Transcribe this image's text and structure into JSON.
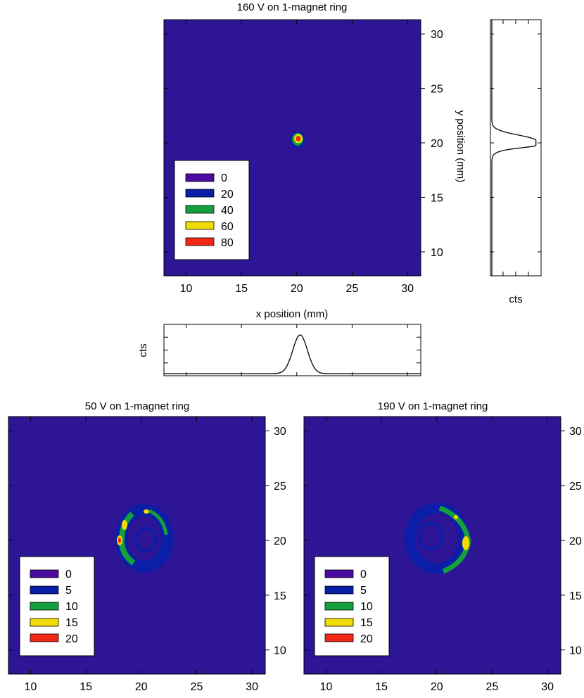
{
  "chart_data": [
    {
      "type": "heatmap",
      "title": "160 V on 1-magnet ring",
      "xlabel": "x position (mm)",
      "ylabel": "y position (mm)",
      "xlim": [
        8,
        31.2
      ],
      "ylim": [
        7.8,
        31.3
      ],
      "xticks": [
        "10",
        "15",
        "20",
        "25",
        "30"
      ],
      "yticks": [
        "10",
        "15",
        "20",
        "25",
        "30"
      ],
      "legend": {
        "position": "bottom-left",
        "levels": [
          "0",
          "20",
          "40",
          "60",
          "80"
        ],
        "colors": [
          "#4b0aa0",
          "#0a1ea8",
          "#14a03c",
          "#f0dc00",
          "#f02814"
        ]
      },
      "background_color": "#2d1596",
      "features": [
        {
          "shape": "spot",
          "cx": 20.2,
          "cy": 20.3,
          "r": 0.6,
          "peak_level": "80"
        }
      ],
      "projections": {
        "x": {
          "label": "cts",
          "peak_position": 20.3,
          "width": 1.2,
          "peak_fraction": 0.82
        },
        "y": {
          "label": "cts",
          "peak_position": 20.2,
          "width": 1.1,
          "peak_fraction": 0.95
        }
      }
    },
    {
      "type": "heatmap",
      "title": "50 V on 1-magnet ring",
      "xlim": [
        8,
        31.2
      ],
      "ylim": [
        7.8,
        31.3
      ],
      "xticks": [
        "10",
        "15",
        "20",
        "25",
        "30"
      ],
      "yticks": [
        "10",
        "15",
        "20",
        "25",
        "30"
      ],
      "legend": {
        "position": "bottom-left",
        "levels": [
          "0",
          "5",
          "10",
          "15",
          "20"
        ],
        "colors": [
          "#4b0aa0",
          "#0a1ea8",
          "#14a03c",
          "#f0dc00",
          "#f02814"
        ]
      },
      "background_color": "#2d1596",
      "features": [
        {
          "shape": "ring",
          "cx": 19.8,
          "cy": 20.2,
          "r": 1.7,
          "thickness": 0.7,
          "bright_side": "left"
        }
      ]
    },
    {
      "type": "heatmap",
      "title": "190 V on 1-magnet ring",
      "xlim": [
        8,
        31.2
      ],
      "ylim": [
        7.8,
        31.3
      ],
      "xticks": [
        "10",
        "15",
        "20",
        "25",
        "30"
      ],
      "yticks": [
        "10",
        "15",
        "20",
        "25",
        "30"
      ],
      "legend": {
        "position": "bottom-left",
        "levels": [
          "0",
          "5",
          "10",
          "15",
          "20"
        ],
        "colors": [
          "#4b0aa0",
          "#0a1ea8",
          "#14a03c",
          "#f0dc00",
          "#f02814"
        ]
      },
      "background_color": "#2d1596",
      "features": [
        {
          "shape": "ring",
          "cx": 20.6,
          "cy": 20.2,
          "r": 2.1,
          "thickness": 0.8,
          "bright_side": "right"
        }
      ]
    }
  ]
}
